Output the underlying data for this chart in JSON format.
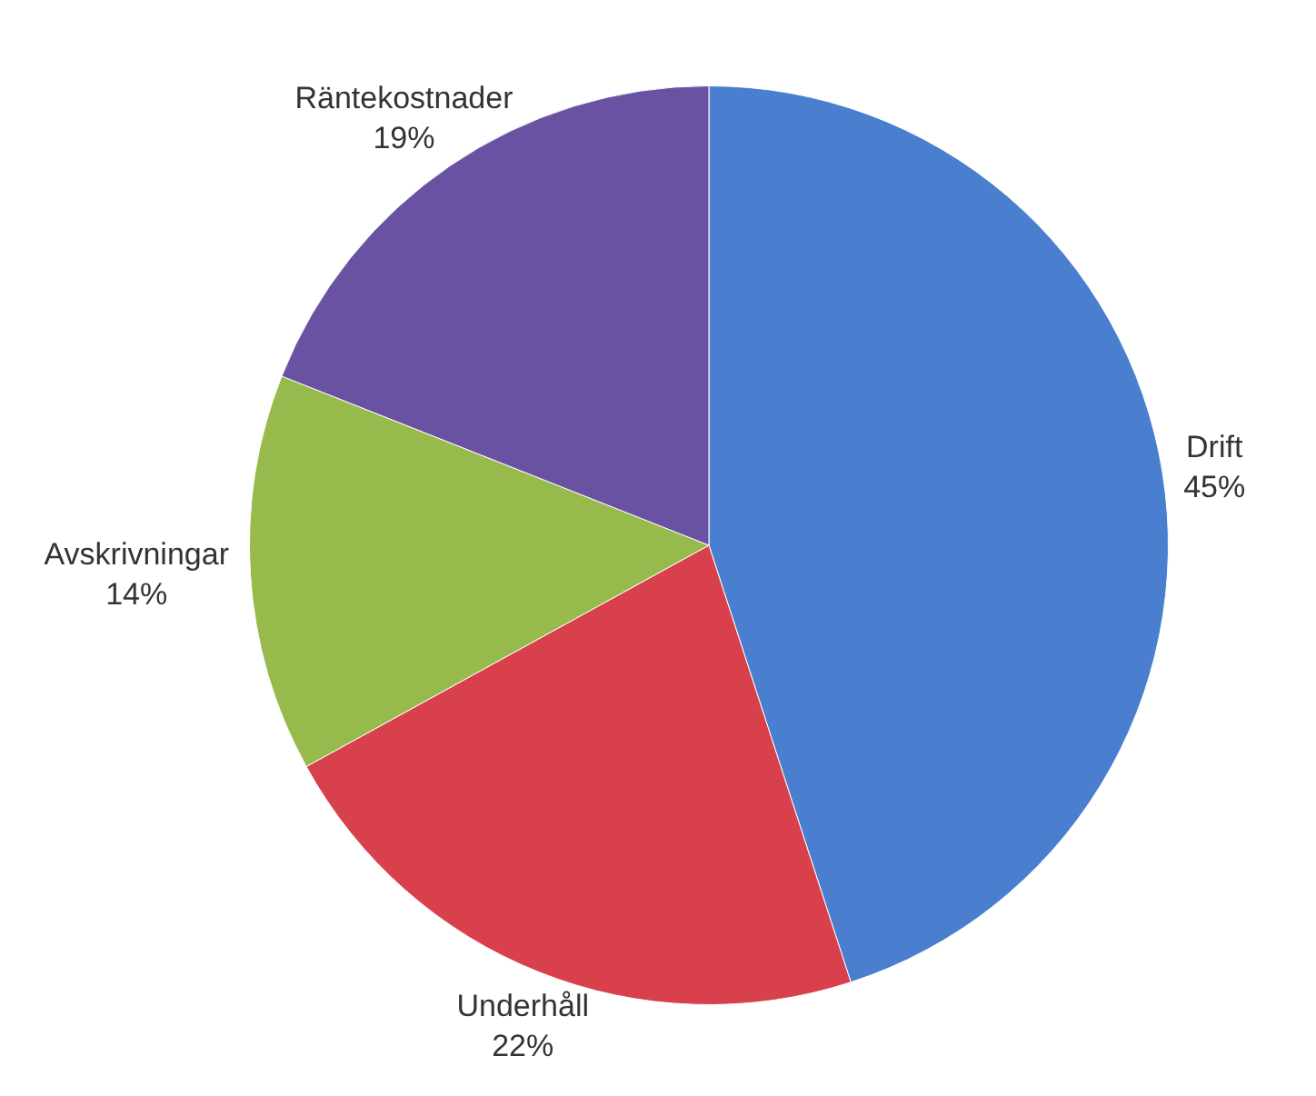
{
  "chart_data": {
    "type": "pie",
    "categories": [
      "Drift",
      "Underhåll",
      "Avskrivningar",
      "Räntekostnader"
    ],
    "values": [
      45,
      22,
      14,
      19
    ],
    "colors": [
      "#4a7fd0",
      "#d8404c",
      "#97ba4c",
      "#6a52a2"
    ],
    "value_labels": [
      "45%",
      "22%",
      "14%",
      "19%"
    ],
    "legend": false
  }
}
